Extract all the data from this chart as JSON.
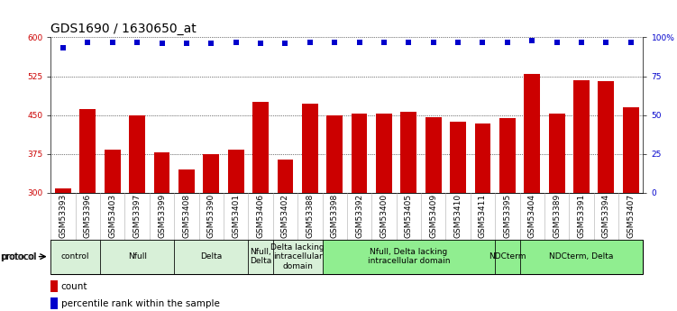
{
  "title": "GDS1690 / 1630650_at",
  "samples": [
    "GSM53393",
    "GSM53396",
    "GSM53403",
    "GSM53397",
    "GSM53399",
    "GSM53408",
    "GSM53390",
    "GSM53401",
    "GSM53406",
    "GSM53402",
    "GSM53388",
    "GSM53398",
    "GSM53392",
    "GSM53400",
    "GSM53405",
    "GSM53409",
    "GSM53410",
    "GSM53411",
    "GSM53395",
    "GSM53404",
    "GSM53389",
    "GSM53391",
    "GSM53394",
    "GSM53407"
  ],
  "counts": [
    308,
    462,
    383,
    450,
    378,
    345,
    375,
    383,
    475,
    365,
    472,
    450,
    452,
    453,
    457,
    446,
    437,
    433,
    445,
    530,
    452,
    517,
    515,
    465
  ],
  "percentiles": [
    93,
    97,
    97,
    97,
    96,
    96,
    96,
    97,
    96,
    96,
    97,
    97,
    97,
    97,
    97,
    97,
    97,
    97,
    97,
    98,
    97,
    97,
    97,
    97
  ],
  "ylim_left": [
    300,
    600
  ],
  "ylim_right": [
    0,
    100
  ],
  "yticks_left": [
    300,
    375,
    450,
    525,
    600
  ],
  "yticks_right": [
    0,
    25,
    50,
    75,
    100
  ],
  "bar_color": "#cc0000",
  "dot_color": "#0000cc",
  "protocol_groups": [
    {
      "label": "control",
      "start": 0,
      "end": 2,
      "color": "#d8f0d8"
    },
    {
      "label": "Nfull",
      "start": 2,
      "end": 5,
      "color": "#d8f0d8"
    },
    {
      "label": "Delta",
      "start": 5,
      "end": 8,
      "color": "#d8f0d8"
    },
    {
      "label": "Nfull,\nDelta",
      "start": 8,
      "end": 9,
      "color": "#d8f0d8"
    },
    {
      "label": "Delta lacking\nintracellular\ndomain",
      "start": 9,
      "end": 11,
      "color": "#d8f0d8"
    },
    {
      "label": "Nfull, Delta lacking\nintracellular domain",
      "start": 11,
      "end": 18,
      "color": "#90ee90"
    },
    {
      "label": "NDCterm",
      "start": 18,
      "end": 19,
      "color": "#90ee90"
    },
    {
      "label": "NDCterm, Delta",
      "start": 19,
      "end": 24,
      "color": "#90ee90"
    }
  ],
  "bg_color": "#ffffff",
  "plot_bg": "#ffffff",
  "grid_color": "#000000",
  "left_label_color": "#cc0000",
  "right_label_color": "#0000cc",
  "title_fontsize": 10,
  "tick_fontsize": 6.5,
  "protocol_fontsize": 6.5,
  "legend_fontsize": 7.5,
  "dot_size": 18
}
